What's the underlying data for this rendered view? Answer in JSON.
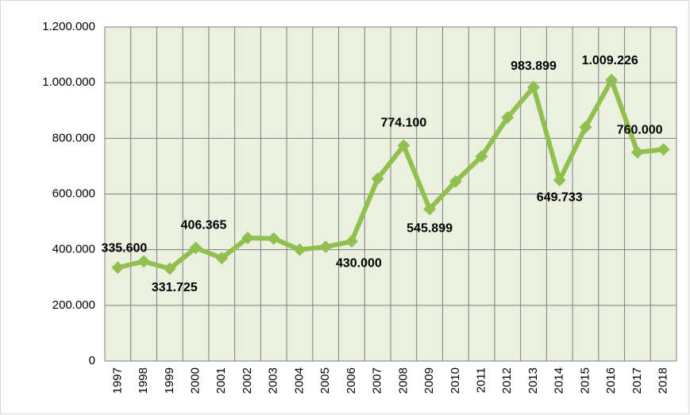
{
  "chart_data": {
    "type": "line",
    "categories": [
      "1997",
      "1998",
      "1999",
      "2000",
      "2001",
      "2002",
      "2003",
      "2004",
      "2005",
      "2006",
      "2007",
      "2008",
      "2009",
      "2010",
      "2011",
      "2012",
      "2013",
      "2014",
      "2015",
      "2016",
      "2017",
      "2018"
    ],
    "series": [
      {
        "color": "#92c050",
        "values": [
          335600,
          358000,
          331725,
          406365,
          370000,
          442000,
          440000,
          400000,
          410000,
          430000,
          655000,
          774100,
          545899,
          645000,
          735000,
          875000,
          983899,
          649733,
          840000,
          1009226,
          750000,
          760000
        ],
        "value_labels": [
          "335.600",
          null,
          "331.725",
          "406.365",
          null,
          null,
          null,
          null,
          null,
          "430.000",
          null,
          "774.100",
          "545.899",
          null,
          null,
          null,
          "983.899",
          "649.733",
          null,
          "1.009.226",
          null,
          "760.000"
        ]
      }
    ],
    "ylim": [
      0,
      1200000
    ],
    "yticks": [
      0,
      {
        "value": 200000,
        "label": "200.000"
      },
      {
        "value": 400000,
        "label": "400.000"
      },
      {
        "value": 600000,
        "label": "600.000"
      },
      {
        "value": 800000,
        "label": "800.000"
      },
      {
        "value": 1000000,
        "label": "1.000.000"
      },
      {
        "value": 1200000,
        "label": "1.200.000"
      }
    ],
    "grid": true
  }
}
